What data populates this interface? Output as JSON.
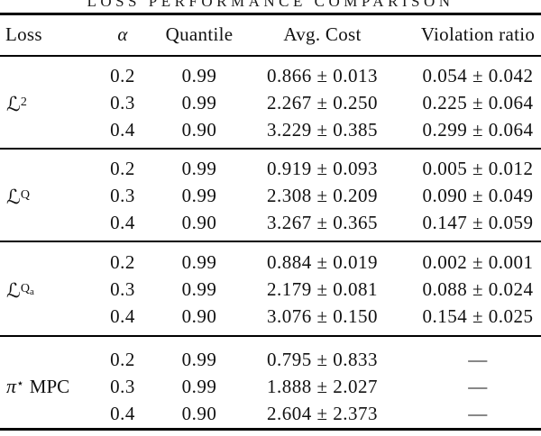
{
  "caption": "LOSS PERFORMANCE COMPARISON",
  "table": {
    "headers": [
      "Loss",
      "α",
      "Quantile",
      "Avg. Cost",
      "Violation ratio"
    ],
    "groups": [
      {
        "loss": {
          "base": "ℒ",
          "sup": "2",
          "supsub": "",
          "suffix": ""
        },
        "rows": [
          [
            "0.2",
            "0.99",
            "0.866 ± 0.013",
            "0.054 ± 0.042"
          ],
          [
            "0.3",
            "0.99",
            "2.267 ± 0.250",
            "0.225 ± 0.064"
          ],
          [
            "0.4",
            "0.90",
            "3.229 ± 0.385",
            "0.299 ± 0.064"
          ]
        ]
      },
      {
        "loss": {
          "base": "ℒ",
          "sup": "Q",
          "supsub": "",
          "suffix": ""
        },
        "rows": [
          [
            "0.2",
            "0.99",
            "0.919 ± 0.093",
            "0.005 ± 0.012"
          ],
          [
            "0.3",
            "0.99",
            "2.308 ± 0.209",
            "0.090 ± 0.049"
          ],
          [
            "0.4",
            "0.90",
            "3.267 ± 0.365",
            "0.147 ± 0.059"
          ]
        ]
      },
      {
        "loss": {
          "base": "ℒ",
          "sup": "Q",
          "supsub": "a",
          "suffix": ""
        },
        "rows": [
          [
            "0.2",
            "0.99",
            "0.884 ± 0.019",
            "0.002 ± 0.001"
          ],
          [
            "0.3",
            "0.99",
            "2.179 ± 0.081",
            "0.088 ± 0.024"
          ],
          [
            "0.4",
            "0.90",
            "3.076 ± 0.150",
            "0.154 ± 0.025"
          ]
        ]
      },
      {
        "loss": {
          "base": "π",
          "sup": "⋆",
          "supsub": "",
          "suffix": "MPC"
        },
        "rows": [
          [
            "0.2",
            "0.99",
            "0.795 ± 0.833",
            "—"
          ],
          [
            "0.3",
            "0.99",
            "1.888 ± 2.027",
            "—"
          ],
          [
            "0.4",
            "0.90",
            "2.604 ± 2.373",
            "—"
          ]
        ]
      }
    ]
  }
}
